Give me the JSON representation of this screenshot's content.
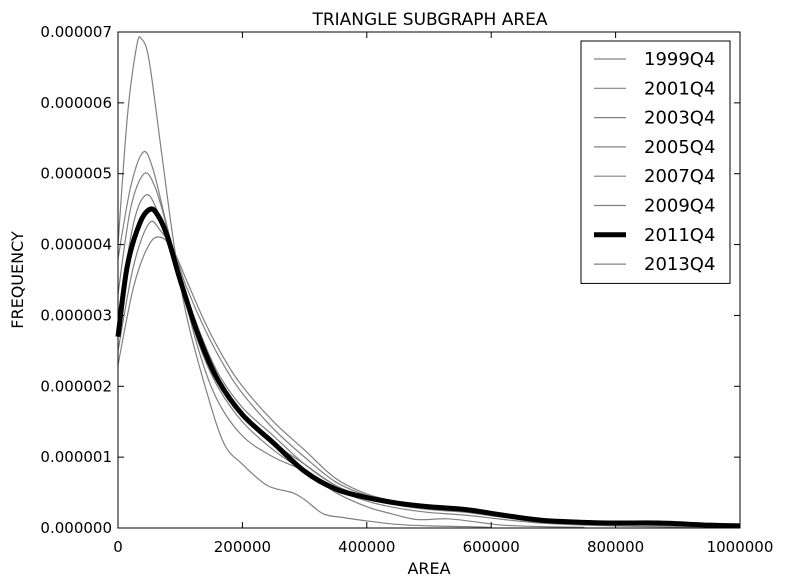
{
  "chart_data": {
    "type": "line",
    "title": "TRIANGLE SUBGRAPH AREA",
    "xlabel": "AREA",
    "ylabel": "FREQUENCY",
    "xlim": [
      0,
      1000000
    ],
    "ylim": [
      0,
      7e-06
    ],
    "x_ticks": [
      0,
      200000,
      400000,
      600000,
      800000,
      1000000
    ],
    "x_tick_labels": [
      "0",
      "200000",
      "400000",
      "600000",
      "800000",
      "1000000"
    ],
    "y_ticks": [
      0,
      1e-06,
      2e-06,
      3e-06,
      4e-06,
      5e-06,
      6e-06,
      7e-06
    ],
    "y_tick_labels": [
      "0.000000",
      "0.000001",
      "0.000002",
      "0.000003",
      "0.000004",
      "0.000005",
      "0.000006",
      "0.000007"
    ],
    "grid": false,
    "legend_position": "top-right",
    "colors": {
      "thin": "#808080",
      "bold": "#000000"
    },
    "series": [
      {
        "name": "1999Q4",
        "style": "thin",
        "points": [
          [
            0,
            4e-06
          ],
          [
            15000,
            5.8e-06
          ],
          [
            30000,
            6.8e-06
          ],
          [
            38000,
            6.9e-06
          ],
          [
            50000,
            6.6e-06
          ],
          [
            70000,
            5.3e-06
          ],
          [
            90000,
            4e-06
          ],
          [
            110000,
            3e-06
          ],
          [
            140000,
            2e-06
          ],
          [
            170000,
            1.2e-06
          ],
          [
            200000,
            9e-07
          ],
          [
            240000,
            6e-07
          ],
          [
            280000,
            5e-07
          ],
          [
            300000,
            4e-07
          ],
          [
            330000,
            2e-07
          ],
          [
            360000,
            1.5e-07
          ],
          [
            400000,
            1e-07
          ],
          [
            450000,
            5e-08
          ],
          [
            500000,
            3e-08
          ],
          [
            560000,
            2e-08
          ],
          [
            600000,
            1e-08
          ]
        ]
      },
      {
        "name": "2001Q4",
        "style": "thin",
        "points": [
          [
            0,
            3.8e-06
          ],
          [
            20000,
            4.8e-06
          ],
          [
            40000,
            5.3e-06
          ],
          [
            55000,
            5.1e-06
          ],
          [
            75000,
            4.4e-06
          ],
          [
            100000,
            3.5e-06
          ],
          [
            130000,
            2.5e-06
          ],
          [
            160000,
            1.8e-06
          ],
          [
            200000,
            1.3e-06
          ],
          [
            250000,
            1e-06
          ],
          [
            300000,
            8e-07
          ],
          [
            350000,
            5e-07
          ],
          [
            400000,
            3e-07
          ],
          [
            440000,
            2e-07
          ],
          [
            480000,
            1.2e-07
          ],
          [
            530000,
            1.3e-07
          ],
          [
            580000,
            8e-08
          ],
          [
            620000,
            4e-08
          ],
          [
            680000,
            2e-08
          ],
          [
            750000,
            1e-08
          ]
        ]
      },
      {
        "name": "2003Q4",
        "style": "thin",
        "points": [
          [
            0,
            3.3e-06
          ],
          [
            20000,
            4.5e-06
          ],
          [
            42000,
            5e-06
          ],
          [
            60000,
            4.8e-06
          ],
          [
            80000,
            4.2e-06
          ],
          [
            100000,
            3.5e-06
          ],
          [
            130000,
            2.6e-06
          ],
          [
            160000,
            2e-06
          ],
          [
            200000,
            1.5e-06
          ],
          [
            250000,
            1.1e-06
          ],
          [
            300000,
            8e-07
          ],
          [
            350000,
            5.5e-07
          ],
          [
            400000,
            3.8e-07
          ],
          [
            450000,
            2.8e-07
          ],
          [
            500000,
            2.2e-07
          ],
          [
            560000,
            1.8e-07
          ],
          [
            620000,
            1.2e-07
          ],
          [
            680000,
            7e-08
          ],
          [
            750000,
            4e-08
          ],
          [
            850000,
            2e-08
          ],
          [
            950000,
            1e-08
          ]
        ]
      },
      {
        "name": "2005Q4",
        "style": "thin",
        "points": [
          [
            0,
            3e-06
          ],
          [
            25000,
            4.3e-06
          ],
          [
            45000,
            4.7e-06
          ],
          [
            62000,
            4.5e-06
          ],
          [
            80000,
            4e-06
          ],
          [
            100000,
            3.5e-06
          ],
          [
            130000,
            2.7e-06
          ],
          [
            160000,
            2.1e-06
          ],
          [
            200000,
            1.6e-06
          ],
          [
            250000,
            1.2e-06
          ],
          [
            300000,
            9e-07
          ],
          [
            350000,
            6e-07
          ],
          [
            400000,
            4.2e-07
          ],
          [
            450000,
            3.2e-07
          ],
          [
            500000,
            2.6e-07
          ],
          [
            560000,
            2.2e-07
          ],
          [
            620000,
            1.5e-07
          ],
          [
            680000,
            9e-08
          ],
          [
            750000,
            6e-08
          ],
          [
            850000,
            4e-08
          ],
          [
            950000,
            2e-08
          ],
          [
            1000000,
            1e-08
          ]
        ]
      },
      {
        "name": "2007Q4",
        "style": "thin",
        "points": [
          [
            0,
            2.8e-06
          ],
          [
            25000,
            4e-06
          ],
          [
            48000,
            4.5e-06
          ],
          [
            65000,
            4.4e-06
          ],
          [
            85000,
            4e-06
          ],
          [
            105000,
            3.4e-06
          ],
          [
            130000,
            2.8e-06
          ],
          [
            160000,
            2.2e-06
          ],
          [
            200000,
            1.7e-06
          ],
          [
            250000,
            1.3e-06
          ],
          [
            300000,
            9e-07
          ],
          [
            350000,
            6e-07
          ],
          [
            400000,
            4.4e-07
          ],
          [
            450000,
            3.5e-07
          ],
          [
            500000,
            2.8e-07
          ],
          [
            560000,
            2.4e-07
          ],
          [
            620000,
            1.6e-07
          ],
          [
            680000,
            1e-07
          ],
          [
            750000,
            7e-08
          ],
          [
            850000,
            5e-08
          ],
          [
            950000,
            3e-08
          ],
          [
            1000000,
            2e-08
          ]
        ]
      },
      {
        "name": "2009Q4",
        "style": "thin",
        "points": [
          [
            0,
            2.5e-06
          ],
          [
            25000,
            3.7e-06
          ],
          [
            50000,
            4.3e-06
          ],
          [
            68000,
            4.2e-06
          ],
          [
            90000,
            3.9e-06
          ],
          [
            110000,
            3.4e-06
          ],
          [
            140000,
            2.8e-06
          ],
          [
            170000,
            2.3e-06
          ],
          [
            200000,
            1.9e-06
          ],
          [
            250000,
            1.4e-06
          ],
          [
            300000,
            1e-06
          ],
          [
            350000,
            6.5e-07
          ],
          [
            400000,
            4.6e-07
          ],
          [
            450000,
            3.6e-07
          ],
          [
            500000,
            2.9e-07
          ],
          [
            560000,
            2.5e-07
          ],
          [
            620000,
            1.7e-07
          ],
          [
            680000,
            1.1e-07
          ],
          [
            750000,
            8e-08
          ],
          [
            850000,
            6e-08
          ],
          [
            950000,
            3e-08
          ],
          [
            1000000,
            2e-08
          ]
        ]
      },
      {
        "name": "2011Q4",
        "style": "bold",
        "points": [
          [
            0,
            2.7e-06
          ],
          [
            15000,
            3.7e-06
          ],
          [
            35000,
            4.3e-06
          ],
          [
            52000,
            4.5e-06
          ],
          [
            65000,
            4.4e-06
          ],
          [
            80000,
            4.1e-06
          ],
          [
            100000,
            3.5e-06
          ],
          [
            130000,
            2.7e-06
          ],
          [
            160000,
            2.1e-06
          ],
          [
            200000,
            1.6e-06
          ],
          [
            250000,
            1.2e-06
          ],
          [
            300000,
            8e-07
          ],
          [
            350000,
            5.5e-07
          ],
          [
            400000,
            4.3e-07
          ],
          [
            450000,
            3.5e-07
          ],
          [
            500000,
            3e-07
          ],
          [
            560000,
            2.6e-07
          ],
          [
            620000,
            1.8e-07
          ],
          [
            680000,
            1.1e-07
          ],
          [
            750000,
            8e-08
          ],
          [
            800000,
            7e-08
          ],
          [
            870000,
            7e-08
          ],
          [
            950000,
            4e-08
          ],
          [
            1000000,
            3e-08
          ]
        ]
      },
      {
        "name": "2013Q4",
        "style": "thin",
        "points": [
          [
            0,
            2.3e-06
          ],
          [
            25000,
            3.4e-06
          ],
          [
            50000,
            4e-06
          ],
          [
            70000,
            4.1e-06
          ],
          [
            90000,
            3.9e-06
          ],
          [
            110000,
            3.5e-06
          ],
          [
            140000,
            2.9e-06
          ],
          [
            170000,
            2.4e-06
          ],
          [
            200000,
            2e-06
          ],
          [
            250000,
            1.5e-06
          ],
          [
            300000,
            1.1e-06
          ],
          [
            350000,
            7e-07
          ],
          [
            400000,
            4.8e-07
          ],
          [
            450000,
            3.7e-07
          ],
          [
            500000,
            3e-07
          ],
          [
            560000,
            2.6e-07
          ],
          [
            620000,
            1.8e-07
          ],
          [
            680000,
            1.2e-07
          ],
          [
            750000,
            9e-08
          ],
          [
            850000,
            7e-08
          ],
          [
            950000,
            4e-08
          ],
          [
            1000000,
            3e-08
          ]
        ]
      }
    ]
  }
}
